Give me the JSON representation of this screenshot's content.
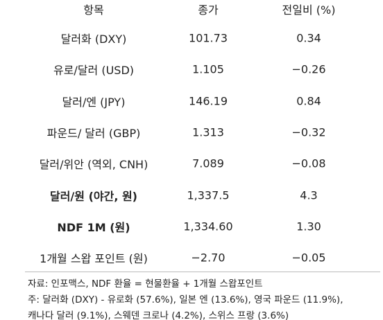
{
  "table": {
    "header": [
      "항목",
      "종가",
      "전일비 (%)"
    ],
    "rows": [
      [
        "달러화 (DXY)",
        "101.73",
        "0.34"
      ],
      [
        "유로/달러 (USD)",
        "1.105",
        "−0.26"
      ],
      [
        "달러/엔 (JPY)",
        "146.19",
        "0.84"
      ],
      [
        "파운드/ 달러 (GBP)",
        "1.313",
        "−0.32"
      ],
      [
        "달러/위안 (역외, CNH)",
        "7.089",
        "−0.08"
      ],
      [
        "달러/원 (야간, 원)",
        "1,337.5",
        "4.3"
      ],
      [
        "NDF 1M (원)",
        "1,334.60",
        "1.30"
      ],
      [
        "1개월 스왑 포인트 (원)",
        "−2.70",
        "−0.05"
      ]
    ]
  },
  "notes": [
    "자료: 인포맥스, NDF 환율 = 현물환율 + 1개월 스왑포인트",
    "주: 달러화 (DXY) - 유로화 (57.6%), 일본 엔 (13.6%), 영국 파운드 (11.9%),",
    "캐나다 달러 (9.1%), 스웨덴 크로나 (4.2%), 스위스 프랑 (3.6%)"
  ]
}
